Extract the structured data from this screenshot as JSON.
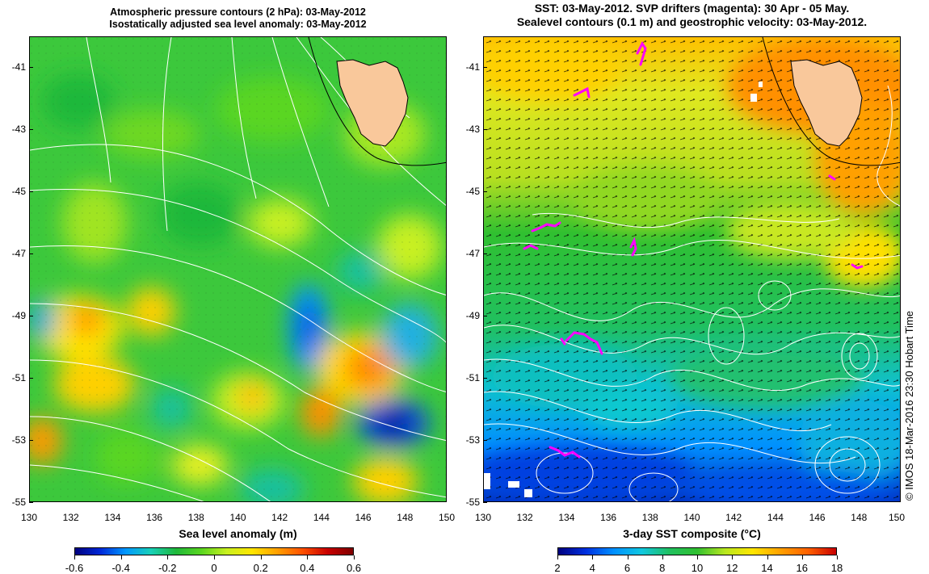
{
  "left_panel": {
    "title_line1": "Atmospheric pressure contours (2 hPa): 03-May-2012",
    "title_line2": "Isostatically adjusted sea level anomaly: 03-May-2012",
    "colorbar_label": "Sea level anomaly (m)",
    "colorbar_ticks": [
      "-0.6",
      "-0.4",
      "-0.2",
      "0",
      "0.2",
      "0.4",
      "0.6"
    ],
    "colorbar_colors": [
      "#00007f",
      "#0028d8",
      "#0098ff",
      "#18d0b8",
      "#1fb83a",
      "#5ad620",
      "#c8f020",
      "#ffe600",
      "#ffa000",
      "#ff5000",
      "#c80000",
      "#7f0000"
    ]
  },
  "right_panel": {
    "title_line1": "SST: 03-May-2012. SVP drifters (magenta): 30 Apr - 05 May.",
    "title_line2": "Sealevel contours (0.1 m) and geostrophic velocity: 03-May-2012.",
    "colorbar_label": "3-day SST composite (°C)",
    "colorbar_ticks": [
      "2",
      "4",
      "6",
      "8",
      "10",
      "12",
      "14",
      "16",
      "18"
    ],
    "colorbar_colors": [
      "#00007f",
      "#0030e0",
      "#0090ff",
      "#10c8e0",
      "#20c060",
      "#30c030",
      "#b8e820",
      "#ffe600",
      "#ffa000",
      "#ff6000",
      "#c80000"
    ],
    "credit": "© IMOS 18-Mar-2016 23:30 Hobart Time"
  },
  "axes": {
    "lat_ticks": [
      "-41",
      "-43",
      "-45",
      "-47",
      "-49",
      "-51",
      "-53",
      "-55"
    ],
    "lon_ticks": [
      "130",
      "132",
      "134",
      "136",
      "138",
      "140",
      "142",
      "144",
      "146",
      "148",
      "150"
    ]
  },
  "colors": {
    "land": "#f9c89b",
    "contour": "#ffffff",
    "drifter": "#ff00ff"
  }
}
